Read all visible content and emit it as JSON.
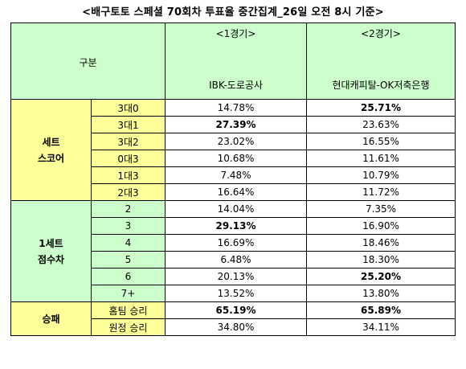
{
  "title": "<배구토토 스페셜 70회차 투표율 중간집계_26일 오전 8시 기준>",
  "header": {
    "gubun": "구분",
    "games": [
      {
        "label": "<1경기>",
        "team": "IBK-도로공사"
      },
      {
        "label": "<2경기>",
        "team": "현대캐피탈-OK저축은행"
      }
    ]
  },
  "sections": [
    {
      "category": "세트 스코어",
      "category_lines": [
        "세트",
        "스코어"
      ],
      "rows": [
        {
          "label": "3대0",
          "g1": "14.78%",
          "g2": "25.71%",
          "g1_bold": false,
          "g2_bold": true
        },
        {
          "label": "3대1",
          "g1": "27.39%",
          "g2": "23.63%",
          "g1_bold": true,
          "g2_bold": false
        },
        {
          "label": "3대2",
          "g1": "23.02%",
          "g2": "16.55%",
          "g1_bold": false,
          "g2_bold": false
        },
        {
          "label": "0대3",
          "g1": "10.68%",
          "g2": "11.61%",
          "g1_bold": false,
          "g2_bold": false
        },
        {
          "label": "1대3",
          "g1": "7.48%",
          "g2": "10.79%",
          "g1_bold": false,
          "g2_bold": false
        },
        {
          "label": "2대3",
          "g1": "16.64%",
          "g2": "11.72%",
          "g1_bold": false,
          "g2_bold": false
        }
      ]
    },
    {
      "category": "1세트 점수차",
      "category_lines": [
        "1세트",
        "점수차"
      ],
      "rows": [
        {
          "label": "2",
          "g1": "14.04%",
          "g2": "7.35%",
          "g1_bold": false,
          "g2_bold": false
        },
        {
          "label": "3",
          "g1": "29.13%",
          "g2": "16.90%",
          "g1_bold": true,
          "g2_bold": false
        },
        {
          "label": "4",
          "g1": "16.69%",
          "g2": "18.46%",
          "g1_bold": false,
          "g2_bold": false
        },
        {
          "label": "5",
          "g1": "6.48%",
          "g2": "18.30%",
          "g1_bold": false,
          "g2_bold": false
        },
        {
          "label": "6",
          "g1": "20.13%",
          "g2": "25.20%",
          "g1_bold": false,
          "g2_bold": true
        },
        {
          "label": "7+",
          "g1": "13.52%",
          "g2": "13.80%",
          "g1_bold": false,
          "g2_bold": false
        }
      ]
    },
    {
      "category": "승패",
      "category_lines": [
        "승패"
      ],
      "rows": [
        {
          "label": "홈팀 승리",
          "g1": "65.19%",
          "g2": "65.89%",
          "g1_bold": true,
          "g2_bold": true
        },
        {
          "label": "원정 승리",
          "g1": "34.80%",
          "g2": "34.11%",
          "g1_bold": false,
          "g2_bold": false
        }
      ]
    }
  ],
  "colors": {
    "yellow": "#ffff99",
    "green": "#ccffcc"
  }
}
